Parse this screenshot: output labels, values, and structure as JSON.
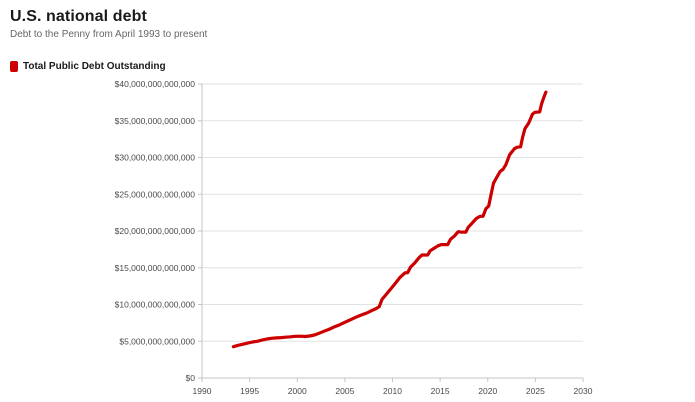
{
  "header": {
    "title": "U.S. national debt",
    "subtitle": "Debt to the Penny from April 1993 to present"
  },
  "legend": {
    "label": "Total Public Debt Outstanding",
    "color": "#cc0000"
  },
  "colors": {
    "line": "#cc0000",
    "grid": "#e2e2e2",
    "axis": "#c6c6c6",
    "tick_label": "#4a4a4a",
    "title": "#1a1a1a",
    "subtitle": "#666666",
    "background": "#ffffff"
  },
  "chart_data": {
    "type": "line",
    "title": "U.S. national debt",
    "subtitle": "Debt to the Penny from April 1993 to present",
    "xlabel": "",
    "ylabel": "",
    "y_units": "USD (point values in trillions of dollars)",
    "xlim": [
      1990,
      2030
    ],
    "ylim_trillions": [
      0,
      40
    ],
    "grid": true,
    "legend_position": "top-left",
    "x_ticks": [
      1990,
      1995,
      2000,
      2005,
      2010,
      2015,
      2020,
      2025,
      2030
    ],
    "x_tick_labels": [
      "1990",
      "1995",
      "2000",
      "2005",
      "2010",
      "2015",
      "2020",
      "2025",
      "2030"
    ],
    "y_ticks": [
      0,
      5,
      10,
      15,
      20,
      25,
      30,
      35,
      40
    ],
    "y_tick_labels": [
      "$0",
      "$5,000,000,000,000",
      "$10,000,000,000,000",
      "$15,000,000,000,000",
      "$20,000,000,000,000",
      "$25,000,000,000,000",
      "$30,000,000,000,000",
      "$35,000,000,000,000",
      "$40,000,000,000,000"
    ],
    "series": [
      {
        "name": "Total Public Debt Outstanding",
        "color": "#cc0000",
        "points": [
          [
            1993.3,
            4.26
          ],
          [
            1993.8,
            4.45
          ],
          [
            1994.3,
            4.6
          ],
          [
            1994.8,
            4.75
          ],
          [
            1995.3,
            4.9
          ],
          [
            1995.8,
            5.0
          ],
          [
            1996.3,
            5.15
          ],
          [
            1996.8,
            5.3
          ],
          [
            1997.3,
            5.4
          ],
          [
            1997.8,
            5.45
          ],
          [
            1998.3,
            5.5
          ],
          [
            1998.8,
            5.55
          ],
          [
            1999.3,
            5.6
          ],
          [
            1999.8,
            5.68
          ],
          [
            2000.3,
            5.69
          ],
          [
            2000.8,
            5.65
          ],
          [
            2001.3,
            5.72
          ],
          [
            2001.8,
            5.85
          ],
          [
            2002.3,
            6.1
          ],
          [
            2002.8,
            6.35
          ],
          [
            2003.3,
            6.6
          ],
          [
            2003.8,
            6.9
          ],
          [
            2004.3,
            7.15
          ],
          [
            2004.8,
            7.45
          ],
          [
            2005.3,
            7.75
          ],
          [
            2005.8,
            8.05
          ],
          [
            2006.3,
            8.35
          ],
          [
            2006.8,
            8.6
          ],
          [
            2007.3,
            8.85
          ],
          [
            2007.8,
            9.15
          ],
          [
            2008.3,
            9.45
          ],
          [
            2008.6,
            9.7
          ],
          [
            2008.9,
            10.7
          ],
          [
            2009.3,
            11.3
          ],
          [
            2009.8,
            12.1
          ],
          [
            2010.3,
            12.9
          ],
          [
            2010.8,
            13.7
          ],
          [
            2011.3,
            14.3
          ],
          [
            2011.6,
            14.34
          ],
          [
            2011.9,
            15.1
          ],
          [
            2012.3,
            15.6
          ],
          [
            2012.8,
            16.4
          ],
          [
            2013.1,
            16.74
          ],
          [
            2013.7,
            16.74
          ],
          [
            2013.95,
            17.3
          ],
          [
            2014.3,
            17.6
          ],
          [
            2014.8,
            18.0
          ],
          [
            2015.1,
            18.15
          ],
          [
            2015.8,
            18.15
          ],
          [
            2016.1,
            18.9
          ],
          [
            2016.5,
            19.3
          ],
          [
            2016.9,
            19.9
          ],
          [
            2017.2,
            19.85
          ],
          [
            2017.7,
            19.85
          ],
          [
            2017.95,
            20.5
          ],
          [
            2018.3,
            21.0
          ],
          [
            2018.8,
            21.7
          ],
          [
            2019.2,
            22.0
          ],
          [
            2019.5,
            22.0
          ],
          [
            2019.8,
            23.0
          ],
          [
            2020.1,
            23.4
          ],
          [
            2020.35,
            25.0
          ],
          [
            2020.6,
            26.5
          ],
          [
            2020.9,
            27.2
          ],
          [
            2021.3,
            28.1
          ],
          [
            2021.6,
            28.4
          ],
          [
            2021.9,
            29.0
          ],
          [
            2022.3,
            30.4
          ],
          [
            2022.8,
            31.2
          ],
          [
            2023.1,
            31.4
          ],
          [
            2023.45,
            31.46
          ],
          [
            2023.65,
            32.7
          ],
          [
            2023.9,
            33.9
          ],
          [
            2024.3,
            34.7
          ],
          [
            2024.7,
            35.9
          ],
          [
            2024.95,
            36.15
          ],
          [
            2025.45,
            36.2
          ],
          [
            2025.65,
            37.3
          ],
          [
            2025.9,
            38.2
          ],
          [
            2026.1,
            38.9
          ]
        ]
      }
    ]
  }
}
